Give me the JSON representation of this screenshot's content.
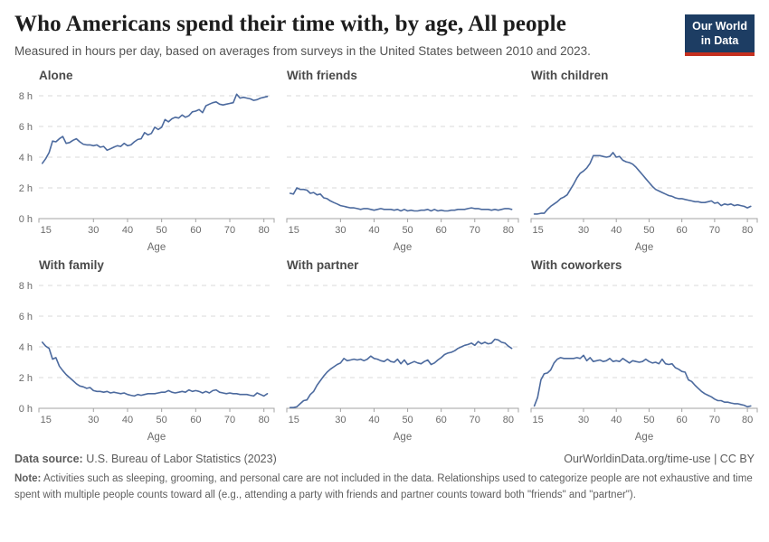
{
  "header": {
    "title": "Who Americans spend their time with, by age, All people",
    "subtitle": "Measured in hours per day, based on averages from surveys in the United States between 2010 and 2023.",
    "logo": {
      "line1": "Our World",
      "line2": "in Data",
      "bg_color": "#1d3d63",
      "accent_color": "#c5301f"
    }
  },
  "footer": {
    "source_label": "Data source:",
    "source_text": " U.S. Bureau of Labor Statistics (2023)",
    "url_text": "OurWorldinData.org/time-use",
    "license_text": " | CC BY",
    "note_label": "Note:",
    "note_text": " Activities such as sleeping, grooming, and personal care are not included in the data. Relationships used to categorize people are not exhaustive and time spent with multiple people counts toward all (e.g., attending a party with friends and partner counts toward both \"friends\" and \"partner\")."
  },
  "chart_data": {
    "type": "line",
    "xlabel": "Age",
    "line_color": "#4c6a9e",
    "grid": "dashed-horizontal",
    "legend": "none",
    "grid_color": "#d9d9d9",
    "axis_color": "#a3a3a3",
    "tick_text_color": "#6b6b6b",
    "xlim": [
      14,
      83
    ],
    "ylim": [
      0,
      8
    ],
    "xticks": [
      15,
      30,
      40,
      50,
      60,
      70,
      80
    ],
    "yticks": [
      0,
      2,
      4,
      6,
      8
    ],
    "ytick_labels": [
      "0 h",
      "2 h",
      "4 h",
      "6 h",
      "8 h"
    ],
    "x": [
      15,
      16,
      17,
      18,
      19,
      20,
      21,
      22,
      23,
      24,
      25,
      26,
      27,
      28,
      29,
      30,
      31,
      32,
      33,
      34,
      35,
      36,
      37,
      38,
      39,
      40,
      41,
      42,
      43,
      44,
      45,
      46,
      47,
      48,
      49,
      50,
      51,
      52,
      53,
      54,
      55,
      56,
      57,
      58,
      59,
      60,
      61,
      62,
      63,
      64,
      65,
      66,
      67,
      68,
      69,
      70,
      71,
      72,
      73,
      74,
      75,
      76,
      77,
      78,
      79,
      80,
      81
    ],
    "facets": [
      {
        "title": "Alone",
        "values": [
          3.6,
          3.9,
          4.3,
          5.05,
          5.0,
          5.2,
          5.35,
          4.9,
          4.95,
          5.1,
          5.2,
          5.0,
          4.85,
          4.8,
          4.8,
          4.75,
          4.8,
          4.65,
          4.7,
          4.45,
          4.55,
          4.65,
          4.75,
          4.7,
          4.9,
          4.75,
          4.8,
          5.0,
          5.15,
          5.2,
          5.6,
          5.45,
          5.55,
          5.95,
          5.8,
          5.95,
          6.45,
          6.3,
          6.5,
          6.6,
          6.55,
          6.75,
          6.6,
          6.7,
          6.95,
          7.0,
          7.1,
          6.9,
          7.35,
          7.45,
          7.55,
          7.6,
          7.45,
          7.4,
          7.45,
          7.5,
          7.55,
          8.1,
          7.85,
          7.9,
          7.85,
          7.8,
          7.7,
          7.75,
          7.85,
          7.9,
          7.95
        ]
      },
      {
        "title": "With friends",
        "values": [
          1.65,
          1.6,
          2.0,
          1.9,
          1.9,
          1.85,
          1.65,
          1.7,
          1.55,
          1.6,
          1.35,
          1.3,
          1.15,
          1.05,
          0.95,
          0.85,
          0.8,
          0.75,
          0.7,
          0.7,
          0.65,
          0.6,
          0.65,
          0.65,
          0.6,
          0.55,
          0.6,
          0.65,
          0.6,
          0.6,
          0.6,
          0.55,
          0.6,
          0.5,
          0.6,
          0.5,
          0.55,
          0.5,
          0.5,
          0.55,
          0.55,
          0.6,
          0.5,
          0.6,
          0.5,
          0.55,
          0.5,
          0.5,
          0.55,
          0.55,
          0.6,
          0.6,
          0.6,
          0.65,
          0.7,
          0.65,
          0.65,
          0.6,
          0.6,
          0.6,
          0.55,
          0.6,
          0.55,
          0.6,
          0.65,
          0.65,
          0.6
        ]
      },
      {
        "title": "With children",
        "values": [
          0.3,
          0.3,
          0.35,
          0.35,
          0.6,
          0.8,
          0.95,
          1.1,
          1.3,
          1.4,
          1.55,
          1.9,
          2.25,
          2.65,
          2.95,
          3.1,
          3.3,
          3.6,
          4.1,
          4.1,
          4.1,
          4.05,
          4.0,
          4.05,
          4.3,
          4.0,
          4.05,
          3.8,
          3.7,
          3.65,
          3.55,
          3.35,
          3.1,
          2.85,
          2.6,
          2.35,
          2.1,
          1.9,
          1.8,
          1.7,
          1.6,
          1.5,
          1.45,
          1.35,
          1.3,
          1.3,
          1.25,
          1.2,
          1.15,
          1.1,
          1.1,
          1.05,
          1.05,
          1.1,
          1.15,
          1.0,
          1.05,
          0.85,
          0.95,
          0.9,
          0.95,
          0.85,
          0.9,
          0.85,
          0.8,
          0.7,
          0.8
        ]
      },
      {
        "title": "With family",
        "values": [
          4.3,
          4.05,
          3.9,
          3.2,
          3.3,
          2.75,
          2.45,
          2.2,
          2.0,
          1.8,
          1.6,
          1.45,
          1.4,
          1.3,
          1.35,
          1.15,
          1.1,
          1.1,
          1.05,
          1.1,
          1.0,
          1.05,
          1.0,
          0.95,
          1.0,
          0.9,
          0.85,
          0.8,
          0.9,
          0.85,
          0.9,
          0.95,
          0.95,
          0.95,
          1.0,
          1.05,
          1.05,
          1.15,
          1.05,
          1.0,
          1.05,
          1.1,
          1.05,
          1.2,
          1.1,
          1.15,
          1.1,
          1.0,
          1.1,
          1.0,
          1.15,
          1.2,
          1.05,
          1.0,
          0.95,
          1.0,
          0.95,
          0.95,
          0.9,
          0.9,
          0.9,
          0.85,
          0.8,
          1.0,
          0.9,
          0.8,
          0.95
        ]
      },
      {
        "title": "With partner",
        "values": [
          0.05,
          0.05,
          0.1,
          0.3,
          0.5,
          0.55,
          0.9,
          1.1,
          1.5,
          1.8,
          2.1,
          2.35,
          2.55,
          2.7,
          2.85,
          2.95,
          3.25,
          3.1,
          3.15,
          3.2,
          3.15,
          3.2,
          3.1,
          3.2,
          3.4,
          3.25,
          3.2,
          3.1,
          3.05,
          3.2,
          3.05,
          3.0,
          3.2,
          2.9,
          3.15,
          2.85,
          2.95,
          3.05,
          2.95,
          2.9,
          3.05,
          3.15,
          2.85,
          2.95,
          3.15,
          3.3,
          3.5,
          3.6,
          3.65,
          3.75,
          3.9,
          4.0,
          4.1,
          4.15,
          4.25,
          4.1,
          4.35,
          4.2,
          4.3,
          4.2,
          4.25,
          4.5,
          4.45,
          4.3,
          4.25,
          4.05,
          3.9
        ]
      },
      {
        "title": "With coworkers",
        "values": [
          0.15,
          0.7,
          1.85,
          2.25,
          2.3,
          2.5,
          2.95,
          3.2,
          3.3,
          3.25,
          3.25,
          3.25,
          3.25,
          3.3,
          3.25,
          3.45,
          3.1,
          3.3,
          3.05,
          3.1,
          3.15,
          3.05,
          3.1,
          3.25,
          3.05,
          3.1,
          3.05,
          3.25,
          3.1,
          2.95,
          3.1,
          3.05,
          3.0,
          3.05,
          3.2,
          3.05,
          2.95,
          3.0,
          2.9,
          3.2,
          2.9,
          2.85,
          2.9,
          2.65,
          2.55,
          2.4,
          2.35,
          1.85,
          1.75,
          1.5,
          1.3,
          1.1,
          0.95,
          0.85,
          0.75,
          0.6,
          0.5,
          0.5,
          0.4,
          0.4,
          0.35,
          0.3,
          0.3,
          0.25,
          0.2,
          0.1,
          0.15
        ]
      }
    ]
  }
}
